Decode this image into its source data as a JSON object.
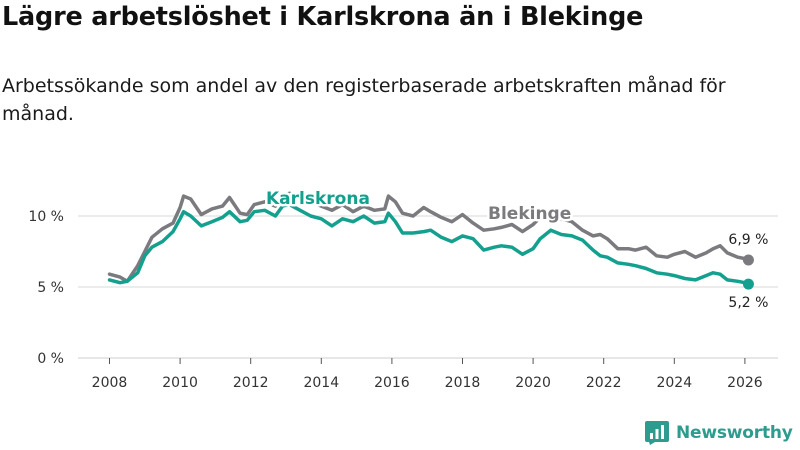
{
  "header": {
    "title": "Lägre arbetslöshet i Karlskrona än i Blekinge",
    "subtitle": "Arbetssökande som andel av den registerbaserade arbetskraften månad för månad."
  },
  "brand": {
    "name": "Newsworthy"
  },
  "colors": {
    "karlskrona": "#14a08e",
    "blekinge": "#7b7b7f",
    "grid": "#d9d9d9",
    "brand": "#2e9b8f"
  },
  "chart_data": {
    "type": "line",
    "title": "Lägre arbetslöshet i Karlskrona än i Blekinge",
    "subtitle": "Arbetssökande som andel av den registerbaserade arbetskraften månad för månad.",
    "xlabel": "",
    "ylabel": "",
    "xlim": [
      2007.3,
      2026.9
    ],
    "ylim": [
      0,
      10
    ],
    "grid": true,
    "x_ticks": [
      2008,
      2010,
      2012,
      2014,
      2016,
      2018,
      2020,
      2022,
      2024,
      2026
    ],
    "x_tick_labels": [
      "2008",
      "2010",
      "2012",
      "2014",
      "2016",
      "2018",
      "2020",
      "2022",
      "2024",
      "2026"
    ],
    "y_ticks": [
      0,
      5,
      10
    ],
    "y_tick_labels": [
      "0 %",
      "5 %",
      "10 %"
    ],
    "series": [
      {
        "name": "Blekinge",
        "label": "Blekinge",
        "end_label": "6,9 %",
        "points": [
          [
            2008.0,
            5.9
          ],
          [
            2008.3,
            5.7
          ],
          [
            2008.5,
            5.4
          ],
          [
            2008.8,
            6.5
          ],
          [
            2009.0,
            7.5
          ],
          [
            2009.2,
            8.5
          ],
          [
            2009.5,
            9.1
          ],
          [
            2009.8,
            9.5
          ],
          [
            2010.0,
            10.6
          ],
          [
            2010.1,
            11.4
          ],
          [
            2010.3,
            11.2
          ],
          [
            2010.6,
            10.1
          ],
          [
            2010.9,
            10.5
          ],
          [
            2011.2,
            10.7
          ],
          [
            2011.4,
            11.3
          ],
          [
            2011.7,
            10.2
          ],
          [
            2011.9,
            10.1
          ],
          [
            2012.1,
            10.8
          ],
          [
            2012.4,
            11.0
          ],
          [
            2012.7,
            10.7
          ],
          [
            2012.9,
            11.3
          ],
          [
            2013.1,
            11.6
          ],
          [
            2013.4,
            11.4
          ],
          [
            2013.7,
            11.0
          ],
          [
            2014.0,
            10.7
          ],
          [
            2014.3,
            10.4
          ],
          [
            2014.6,
            10.8
          ],
          [
            2014.9,
            10.3
          ],
          [
            2015.2,
            10.7
          ],
          [
            2015.5,
            10.4
          ],
          [
            2015.8,
            10.5
          ],
          [
            2015.9,
            11.4
          ],
          [
            2016.1,
            11.0
          ],
          [
            2016.3,
            10.2
          ],
          [
            2016.6,
            10.0
          ],
          [
            2016.9,
            10.6
          ],
          [
            2017.1,
            10.3
          ],
          [
            2017.4,
            9.9
          ],
          [
            2017.7,
            9.6
          ],
          [
            2018.0,
            10.1
          ],
          [
            2018.3,
            9.5
          ],
          [
            2018.6,
            9.0
          ],
          [
            2018.9,
            9.1
          ],
          [
            2019.1,
            9.2
          ],
          [
            2019.4,
            9.4
          ],
          [
            2019.7,
            8.9
          ],
          [
            2020.0,
            9.4
          ],
          [
            2020.2,
            9.9
          ],
          [
            2020.5,
            10.3
          ],
          [
            2020.8,
            9.8
          ],
          [
            2021.1,
            9.6
          ],
          [
            2021.4,
            9.0
          ],
          [
            2021.7,
            8.6
          ],
          [
            2021.9,
            8.7
          ],
          [
            2022.1,
            8.4
          ],
          [
            2022.4,
            7.7
          ],
          [
            2022.7,
            7.7
          ],
          [
            2022.9,
            7.6
          ],
          [
            2023.2,
            7.8
          ],
          [
            2023.5,
            7.2
          ],
          [
            2023.8,
            7.1
          ],
          [
            2024.0,
            7.3
          ],
          [
            2024.3,
            7.5
          ],
          [
            2024.6,
            7.1
          ],
          [
            2024.9,
            7.4
          ],
          [
            2025.1,
            7.7
          ],
          [
            2025.3,
            7.9
          ],
          [
            2025.5,
            7.4
          ],
          [
            2025.8,
            7.1
          ],
          [
            2026.0,
            7.0
          ],
          [
            2026.1,
            6.9
          ]
        ]
      },
      {
        "name": "Karlskrona",
        "label": "Karlskrona",
        "end_label": "5,2 %",
        "points": [
          [
            2008.0,
            5.5
          ],
          [
            2008.3,
            5.3
          ],
          [
            2008.5,
            5.4
          ],
          [
            2008.8,
            6.0
          ],
          [
            2009.0,
            7.2
          ],
          [
            2009.2,
            7.8
          ],
          [
            2009.5,
            8.2
          ],
          [
            2009.8,
            8.9
          ],
          [
            2010.0,
            9.8
          ],
          [
            2010.1,
            10.3
          ],
          [
            2010.3,
            10.0
          ],
          [
            2010.6,
            9.3
          ],
          [
            2010.9,
            9.6
          ],
          [
            2011.2,
            9.9
          ],
          [
            2011.4,
            10.3
          ],
          [
            2011.7,
            9.6
          ],
          [
            2011.9,
            9.7
          ],
          [
            2012.1,
            10.3
          ],
          [
            2012.4,
            10.4
          ],
          [
            2012.7,
            10.0
          ],
          [
            2012.9,
            10.7
          ],
          [
            2013.1,
            10.8
          ],
          [
            2013.4,
            10.4
          ],
          [
            2013.7,
            10.0
          ],
          [
            2014.0,
            9.8
          ],
          [
            2014.3,
            9.3
          ],
          [
            2014.6,
            9.8
          ],
          [
            2014.9,
            9.6
          ],
          [
            2015.2,
            10.0
          ],
          [
            2015.5,
            9.5
          ],
          [
            2015.8,
            9.6
          ],
          [
            2015.9,
            10.2
          ],
          [
            2016.1,
            9.6
          ],
          [
            2016.3,
            8.8
          ],
          [
            2016.6,
            8.8
          ],
          [
            2016.9,
            8.9
          ],
          [
            2017.1,
            9.0
          ],
          [
            2017.4,
            8.5
          ],
          [
            2017.7,
            8.2
          ],
          [
            2018.0,
            8.6
          ],
          [
            2018.3,
            8.4
          ],
          [
            2018.6,
            7.6
          ],
          [
            2018.9,
            7.8
          ],
          [
            2019.1,
            7.9
          ],
          [
            2019.4,
            7.8
          ],
          [
            2019.7,
            7.3
          ],
          [
            2020.0,
            7.7
          ],
          [
            2020.2,
            8.4
          ],
          [
            2020.5,
            9.0
          ],
          [
            2020.8,
            8.7
          ],
          [
            2021.1,
            8.6
          ],
          [
            2021.4,
            8.3
          ],
          [
            2021.7,
            7.6
          ],
          [
            2021.9,
            7.2
          ],
          [
            2022.1,
            7.1
          ],
          [
            2022.4,
            6.7
          ],
          [
            2022.7,
            6.6
          ],
          [
            2022.9,
            6.5
          ],
          [
            2023.2,
            6.3
          ],
          [
            2023.5,
            6.0
          ],
          [
            2023.8,
            5.9
          ],
          [
            2024.0,
            5.8
          ],
          [
            2024.3,
            5.6
          ],
          [
            2024.6,
            5.5
          ],
          [
            2024.9,
            5.8
          ],
          [
            2025.1,
            6.0
          ],
          [
            2025.3,
            5.9
          ],
          [
            2025.5,
            5.5
          ],
          [
            2025.8,
            5.4
          ],
          [
            2026.0,
            5.3
          ],
          [
            2026.1,
            5.2
          ]
        ]
      }
    ]
  }
}
